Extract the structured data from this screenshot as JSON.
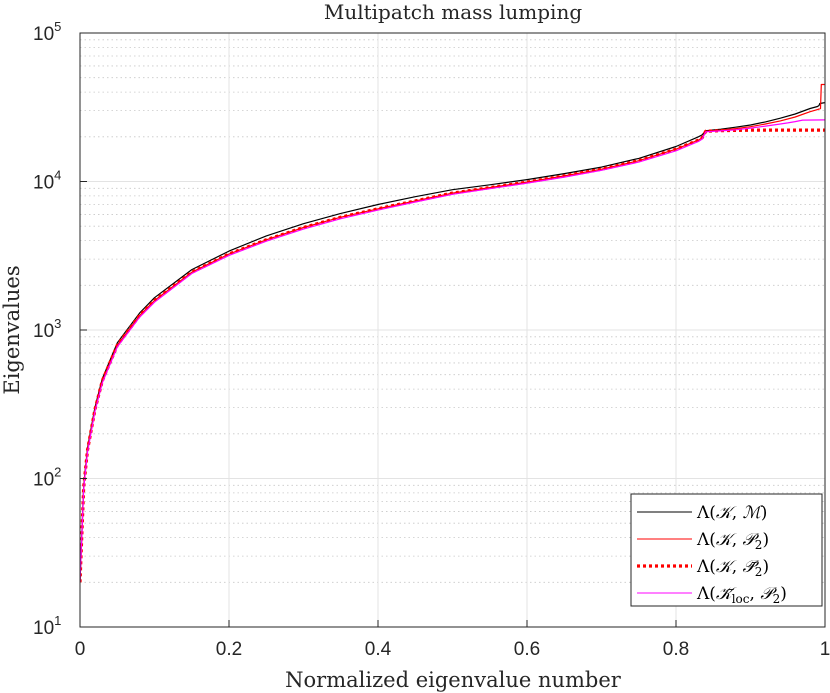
{
  "chart_data": {
    "type": "line",
    "title": "Multipatch mass lumping",
    "xlabel": "Normalized eigenvalue number",
    "ylabel": "Eigenvalues",
    "xlim": [
      0,
      1
    ],
    "ylim": [
      10,
      100000
    ],
    "yscale": "log",
    "grid": true,
    "minor_grid": true,
    "legend_position": "bottom-right",
    "x_ticks": [
      0,
      0.2,
      0.4,
      0.6,
      0.8,
      1
    ],
    "x_tick_labels": [
      "0",
      "0.2",
      "0.4",
      "0.6",
      "0.8",
      "1"
    ],
    "y_ticks": [
      10,
      100,
      1000,
      10000,
      100000
    ],
    "y_tick_labels": [
      {
        "base": "10",
        "exp": "1"
      },
      {
        "base": "10",
        "exp": "2"
      },
      {
        "base": "10",
        "exp": "3"
      },
      {
        "base": "10",
        "exp": "4"
      },
      {
        "base": "10",
        "exp": "5"
      }
    ],
    "series": [
      {
        "name": "Λ(𝒦, ℳ)",
        "color": "#000000",
        "style": "solid",
        "x": [
          0,
          0.005,
          0.01,
          0.02,
          0.03,
          0.05,
          0.08,
          0.1,
          0.15,
          0.2,
          0.25,
          0.3,
          0.35,
          0.4,
          0.45,
          0.5,
          0.55,
          0.6,
          0.65,
          0.7,
          0.75,
          0.8,
          0.83,
          0.835,
          0.84,
          0.86,
          0.88,
          0.9,
          0.92,
          0.94,
          0.96,
          0.98,
          0.99,
          0.992,
          0.993,
          1.0
        ],
        "y": [
          20,
          90,
          160,
          300,
          470,
          820,
          1300,
          1650,
          2550,
          3400,
          4300,
          5200,
          6100,
          7000,
          7900,
          8800,
          9500,
          10300,
          11300,
          12500,
          14300,
          17200,
          20000,
          20600,
          22000,
          22500,
          23200,
          24000,
          25200,
          26700,
          28500,
          31000,
          32000,
          32500,
          33500,
          34000
        ]
      },
      {
        "name": "Λ(𝒦, 𝒫₂)",
        "color": "#ff0000",
        "style": "solid",
        "x": [
          0,
          0.005,
          0.01,
          0.02,
          0.03,
          0.05,
          0.08,
          0.1,
          0.15,
          0.2,
          0.25,
          0.3,
          0.35,
          0.4,
          0.45,
          0.5,
          0.55,
          0.6,
          0.65,
          0.7,
          0.75,
          0.8,
          0.83,
          0.835,
          0.84,
          0.86,
          0.88,
          0.9,
          0.92,
          0.94,
          0.96,
          0.98,
          0.99,
          0.994,
          0.995,
          1.0
        ],
        "y": [
          20,
          88,
          155,
          290,
          455,
          790,
          1250,
          1580,
          2450,
          3250,
          4050,
          4900,
          5750,
          6550,
          7400,
          8350,
          9100,
          9900,
          10900,
          12100,
          13800,
          16500,
          19000,
          19700,
          21800,
          22200,
          22700,
          23400,
          24400,
          25600,
          27200,
          29500,
          30500,
          31000,
          45000,
          45000
        ]
      },
      {
        "name": "Λ(𝒦, 𝒫̄₂)",
        "color": "#ff0000",
        "style": "dotted",
        "x": [
          0,
          0.005,
          0.01,
          0.02,
          0.03,
          0.05,
          0.08,
          0.1,
          0.15,
          0.2,
          0.25,
          0.3,
          0.35,
          0.4,
          0.45,
          0.5,
          0.55,
          0.6,
          0.65,
          0.7,
          0.75,
          0.8,
          0.83,
          0.835,
          0.84,
          0.86,
          0.88,
          0.9,
          0.92,
          0.94,
          0.96,
          0.98,
          1.0
        ],
        "y": [
          20,
          88,
          155,
          290,
          455,
          790,
          1250,
          1580,
          2450,
          3250,
          4050,
          4900,
          5750,
          6550,
          7400,
          8350,
          9100,
          9900,
          10900,
          12100,
          13800,
          16500,
          19000,
          19700,
          21800,
          22000,
          22100,
          22150,
          22200,
          22200,
          22200,
          22200,
          22200
        ]
      },
      {
        "name": "Λ(𝒦̄_loc, 𝒫₂)",
        "color": "#ff00ff",
        "style": "solid",
        "x": [
          0,
          0.005,
          0.01,
          0.02,
          0.03,
          0.05,
          0.08,
          0.1,
          0.15,
          0.2,
          0.25,
          0.3,
          0.35,
          0.4,
          0.45,
          0.5,
          0.55,
          0.6,
          0.65,
          0.7,
          0.75,
          0.8,
          0.83,
          0.835,
          0.84,
          0.86,
          0.88,
          0.9,
          0.92,
          0.94,
          0.95,
          0.96,
          0.97,
          1.0
        ],
        "y": [
          20,
          86,
          150,
          282,
          440,
          770,
          1220,
          1540,
          2400,
          3180,
          3960,
          4780,
          5620,
          6420,
          7280,
          8200,
          8950,
          9750,
          10700,
          11900,
          13500,
          16100,
          18600,
          19300,
          21600,
          21900,
          22300,
          22900,
          23600,
          24400,
          24800,
          25300,
          25900,
          26000
        ]
      }
    ]
  },
  "legend": {
    "entries": [
      {
        "lambda": "Λ",
        "open": "(",
        "a": "𝒦",
        "sep": ", ",
        "b": "ℳ",
        "close": ")"
      },
      {
        "lambda": "Λ",
        "open": "(",
        "a": "𝒦",
        "sep": ", ",
        "b": "𝒫",
        "b_sub": "2",
        "close": ")"
      },
      {
        "lambda": "Λ",
        "open": "(",
        "a": "𝒦",
        "sep": ", ",
        "b": "𝒫̄",
        "b_sub": "2",
        "close": ")"
      },
      {
        "lambda": "Λ",
        "open": "(",
        "a": "𝒦̄",
        "a_sub": "loc",
        "sep": ", ",
        "b": "𝒫",
        "b_sub": "2",
        "close": ")"
      }
    ]
  }
}
